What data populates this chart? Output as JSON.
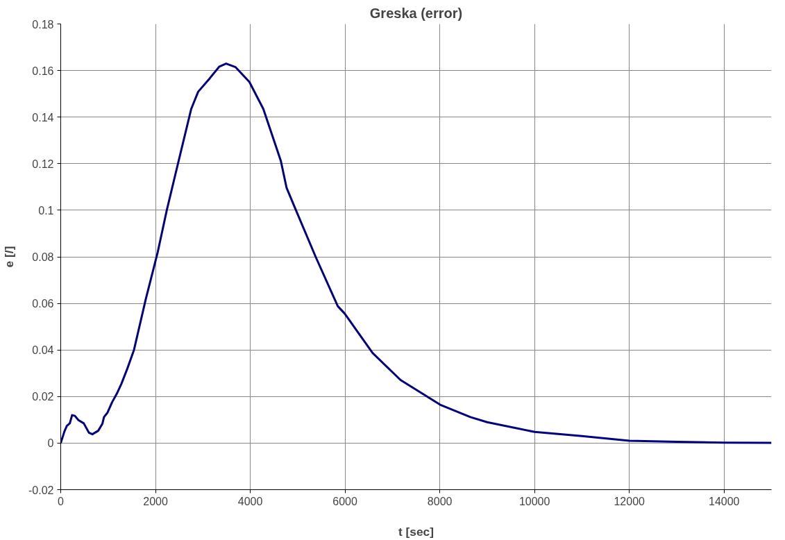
{
  "chart_data": {
    "type": "line",
    "title": "Greska (error)",
    "xlabel": "t [sec]",
    "ylabel": "e [/]",
    "xlim": [
      0,
      15000
    ],
    "xticks": [
      0,
      2000,
      4000,
      6000,
      8000,
      10000,
      12000,
      14000
    ],
    "ylim": [
      -0.02,
      0.18
    ],
    "yticks": [
      -0.02,
      0,
      0.02,
      0.04,
      0.06,
      0.08,
      0.1,
      0.12,
      0.14,
      0.16,
      0.18
    ],
    "grid": true,
    "marker": "none",
    "line_style": "solid",
    "series": [
      {
        "color": "#000080",
        "x": [
          0,
          78,
          128,
          191,
          240,
          299,
          373,
          486,
          594,
          668,
          791,
          879,
          913,
          987,
          1085,
          1183,
          1281,
          1404,
          1546,
          1797,
          2047,
          2238,
          2474,
          2754,
          2901,
          3147,
          3343,
          3490,
          3686,
          3981,
          4276,
          4644,
          4767,
          4963,
          5380,
          5847,
          5994,
          6583,
          7172,
          8007,
          8645,
          9000,
          10000,
          11000,
          12000,
          13000,
          14000,
          15000
        ],
        "values": [
          0,
          0.005,
          0.0074,
          0.0085,
          0.012,
          0.0117,
          0.0099,
          0.0085,
          0.0045,
          0.0038,
          0.0053,
          0.0083,
          0.0112,
          0.0131,
          0.0176,
          0.0212,
          0.0255,
          0.0319,
          0.04,
          0.062,
          0.082,
          0.1,
          0.12,
          0.1435,
          0.1509,
          0.1567,
          0.1616,
          0.163,
          0.1615,
          0.1551,
          0.1435,
          0.1213,
          0.1096,
          0.1001,
          0.08,
          0.0588,
          0.0556,
          0.0387,
          0.0271,
          0.0165,
          0.0112,
          0.009,
          0.0048,
          0.003,
          0.001,
          0.0006,
          0.0002,
          0.0001
        ]
      }
    ]
  }
}
